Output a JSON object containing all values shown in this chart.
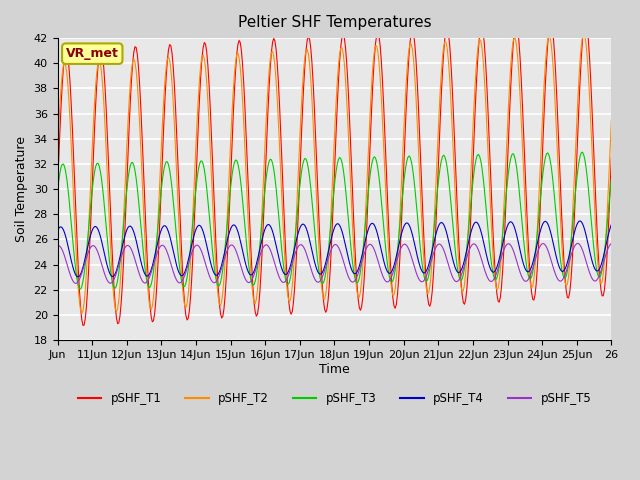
{
  "title": "Peltier SHF Temperatures",
  "xlabel": "Time",
  "ylabel": "Soil Temperature",
  "ylim": [
    18,
    42
  ],
  "yticks": [
    18,
    20,
    22,
    24,
    26,
    28,
    30,
    32,
    34,
    36,
    38,
    40,
    42
  ],
  "xtick_positions": [
    0,
    1,
    2,
    3,
    4,
    5,
    6,
    7,
    8,
    9,
    10,
    11,
    12,
    13,
    14,
    15,
    16
  ],
  "xtick_labels": [
    "Jun",
    "11Jun",
    "12Jun",
    "13Jun",
    "14Jun",
    "15Jun",
    "16Jun",
    "17Jun",
    "18Jun",
    "19Jun",
    "20Jun",
    "21Jun",
    "22Jun",
    "23Jun",
    "24Jun",
    "25Jun",
    "26"
  ],
  "annotation_text": "VR_met",
  "annotation_bg": "#ffff99",
  "annotation_border": "#aaaa00",
  "annotation_text_color": "#8b0000",
  "colors": {
    "pSHF_T1": "#ff0000",
    "pSHF_T2": "#ff8c00",
    "pSHF_T3": "#00cc00",
    "pSHF_T4": "#0000cc",
    "pSHF_T5": "#9932cc"
  },
  "bg_color": "#d3d3d3",
  "plot_bg": "#e8e8e8",
  "grid_color": "#ffffff",
  "n_points": 480,
  "t_start": 0,
  "t_end": 16,
  "T1_base": 30,
  "T1_amp": 11,
  "T1_trend": 2.5,
  "T2_base": 30,
  "T2_amp": 10,
  "T2_trend": 2.5,
  "T3_base": 27,
  "T3_amp": 5,
  "T3_trend": 1.0,
  "T4_base": 25,
  "T4_amp": 2,
  "T4_trend": 0.5,
  "T5_base": 24,
  "T5_amp": 1.5,
  "T5_trend": 0.2,
  "T1_phase": 0.0,
  "T2_phase": 0.3,
  "T3_phase": 0.6,
  "T4_phase": 1.0,
  "T5_phase": 1.4,
  "period": 1.0,
  "legend_labels": [
    "pSHF_T1",
    "pSHF_T2",
    "pSHF_T3",
    "pSHF_T4",
    "pSHF_T5"
  ]
}
